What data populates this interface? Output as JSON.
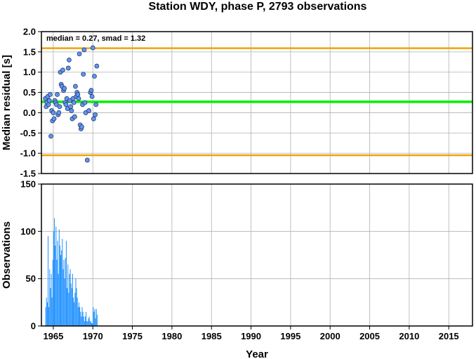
{
  "chart_data": [
    {
      "type": "scatter",
      "title": "Station WDY, phase P, 2793 observations",
      "xlabel": "",
      "ylabel": "Median residual [s]",
      "annotation": "median = 0.27, smad = 1.32",
      "xlim": [
        1963.5,
        2018.0
      ],
      "ylim": [
        -1.5,
        2.0
      ],
      "yticks": [
        "2.0",
        "1.5",
        "1.0",
        "0.5",
        "0.0",
        "-0.5",
        "-1.0",
        "-1.5"
      ],
      "grid": true,
      "reference_lines": [
        {
          "name": "median",
          "y": 0.27,
          "color": "#00ee00"
        },
        {
          "name": "upper",
          "y": 1.59,
          "color": "#f0a30a"
        },
        {
          "name": "lower",
          "y": -1.05,
          "color": "#f0a30a"
        }
      ],
      "point_color": "#6495ed",
      "points": [
        [
          1964.0,
          0.35
        ],
        [
          1964.1,
          0.15
        ],
        [
          1964.2,
          0.25
        ],
        [
          1964.3,
          0.4
        ],
        [
          1964.4,
          0.2
        ],
        [
          1964.5,
          0.3
        ],
        [
          1964.6,
          0.45
        ],
        [
          1964.7,
          -0.58
        ],
        [
          1964.8,
          0.05
        ],
        [
          1964.9,
          -0.2
        ],
        [
          1965.0,
          0.0
        ],
        [
          1965.1,
          -0.15
        ],
        [
          1965.2,
          0.3
        ],
        [
          1965.3,
          0.25
        ],
        [
          1965.4,
          0.2
        ],
        [
          1965.5,
          0.45
        ],
        [
          1965.6,
          -0.05
        ],
        [
          1965.7,
          0.0
        ],
        [
          1965.8,
          0.15
        ],
        [
          1965.9,
          1.0
        ],
        [
          1966.0,
          0.7
        ],
        [
          1966.1,
          0.65
        ],
        [
          1966.2,
          1.05
        ],
        [
          1966.3,
          0.55
        ],
        [
          1966.4,
          0.6
        ],
        [
          1966.5,
          0.25
        ],
        [
          1966.6,
          0.2
        ],
        [
          1966.7,
          0.35
        ],
        [
          1966.8,
          0.1
        ],
        [
          1966.9,
          1.1
        ],
        [
          1967.0,
          1.3
        ],
        [
          1967.1,
          0.3
        ],
        [
          1967.2,
          0.15
        ],
        [
          1967.3,
          0.05
        ],
        [
          1967.4,
          -0.15
        ],
        [
          1967.5,
          0.35
        ],
        [
          1967.6,
          0.25
        ],
        [
          1967.7,
          -0.1
        ],
        [
          1967.8,
          0.65
        ],
        [
          1967.9,
          0.4
        ],
        [
          1968.0,
          0.5
        ],
        [
          1968.1,
          0.45
        ],
        [
          1968.2,
          0.35
        ],
        [
          1968.3,
          1.45
        ],
        [
          1968.4,
          -0.3
        ],
        [
          1968.5,
          -0.4
        ],
        [
          1968.6,
          -0.35
        ],
        [
          1968.7,
          0.2
        ],
        [
          1968.8,
          0.95
        ],
        [
          1968.9,
          1.55
        ],
        [
          1969.0,
          0.25
        ],
        [
          1969.1,
          0.0
        ],
        [
          1969.3,
          -1.17
        ],
        [
          1969.5,
          0.05
        ],
        [
          1969.7,
          0.5
        ],
        [
          1969.8,
          0.55
        ],
        [
          1969.9,
          0.4
        ],
        [
          1970.0,
          1.6
        ],
        [
          1970.1,
          -0.15
        ],
        [
          1970.2,
          0.9
        ],
        [
          1970.3,
          -0.05
        ],
        [
          1970.4,
          0.2
        ],
        [
          1970.5,
          1.15
        ]
      ]
    },
    {
      "type": "bar",
      "xlabel": "Year",
      "ylabel": "Observations",
      "xlim": [
        1963.5,
        2018.0
      ],
      "ylim": [
        0,
        150
      ],
      "yticks": [
        "150",
        "100",
        "50",
        "0"
      ],
      "xticks": [
        "1965",
        "1970",
        "1975",
        "1980",
        "1985",
        "1990",
        "1995",
        "2000",
        "2005",
        "2010",
        "2015"
      ],
      "grid": true,
      "bar_color": "#1e90ff",
      "bin_width": 0.1,
      "x": [
        1964.0,
        1964.1,
        1964.2,
        1964.3,
        1964.4,
        1964.5,
        1964.6,
        1964.7,
        1964.8,
        1964.9,
        1965.0,
        1965.1,
        1965.2,
        1965.3,
        1965.4,
        1965.5,
        1965.6,
        1965.7,
        1965.8,
        1965.9,
        1966.0,
        1966.1,
        1966.2,
        1966.3,
        1966.4,
        1966.5,
        1966.6,
        1966.7,
        1966.8,
        1966.9,
        1967.0,
        1967.1,
        1967.2,
        1967.3,
        1967.4,
        1967.5,
        1967.6,
        1967.7,
        1967.8,
        1967.9,
        1968.0,
        1968.1,
        1968.2,
        1968.3,
        1968.4,
        1968.5,
        1968.6,
        1968.7,
        1968.8,
        1968.9,
        1969.0,
        1969.1,
        1969.2,
        1969.3,
        1969.4,
        1969.5,
        1969.6,
        1969.7,
        1969.8,
        1969.9,
        1970.0,
        1970.1,
        1970.2,
        1970.3,
        1970.4,
        1970.5
      ],
      "values": [
        20,
        30,
        25,
        95,
        20,
        60,
        40,
        55,
        30,
        70,
        100,
        114,
        85,
        105,
        70,
        90,
        55,
        102,
        85,
        75,
        80,
        92,
        60,
        70,
        50,
        72,
        90,
        40,
        65,
        35,
        55,
        60,
        45,
        40,
        55,
        30,
        25,
        35,
        50,
        40,
        30,
        20,
        25,
        20,
        15,
        10,
        20,
        15,
        10,
        5,
        10,
        15,
        5,
        5,
        8,
        10,
        5,
        5,
        3,
        3,
        20,
        15,
        18,
        8,
        18,
        12
      ]
    }
  ]
}
